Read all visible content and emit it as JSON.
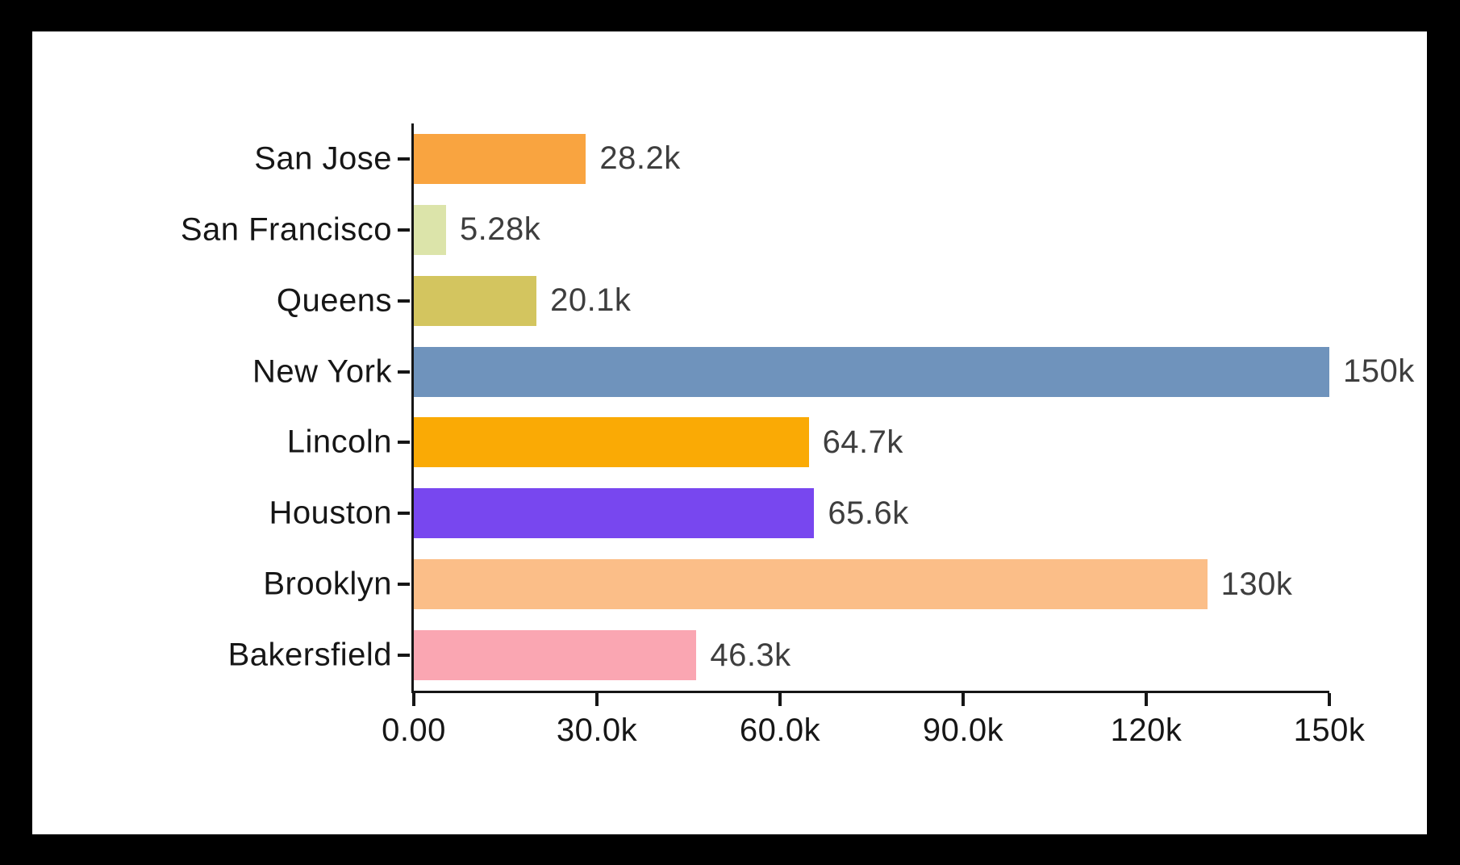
{
  "page": {
    "background_color": "#000000",
    "card_background_color": "#ffffff"
  },
  "chart_data": {
    "type": "bar",
    "orientation": "horizontal",
    "title": "",
    "xlabel": "",
    "ylabel": "",
    "grid": false,
    "legend": false,
    "categories": [
      "San Jose",
      "San Francisco",
      "Queens",
      "New York",
      "Lincoln",
      "Houston",
      "Brooklyn",
      "Bakersfield"
    ],
    "values": [
      28200,
      5280,
      20100,
      150000,
      64700,
      65600,
      130000,
      46300
    ],
    "value_labels": [
      "28.2k",
      "5.28k",
      "20.1k",
      "150k",
      "64.7k",
      "65.6k",
      "130k",
      "46.3k"
    ],
    "bar_colors": [
      "#F9A440",
      "#DCE4AA",
      "#D3C55F",
      "#6F93BC",
      "#FAAA05",
      "#7847EF",
      "#FBBE88",
      "#FAA6B2"
    ],
    "x_axis": {
      "range": [
        0,
        150000
      ],
      "ticks": [
        0,
        30000,
        60000,
        90000,
        120000,
        150000
      ],
      "tick_labels": [
        "0.00",
        "30.0k",
        "60.0k",
        "90.0k",
        "120k",
        "150k"
      ]
    },
    "axis_color": "#161616",
    "category_label_color": "#161616",
    "value_label_color": "#3e3e3e"
  }
}
